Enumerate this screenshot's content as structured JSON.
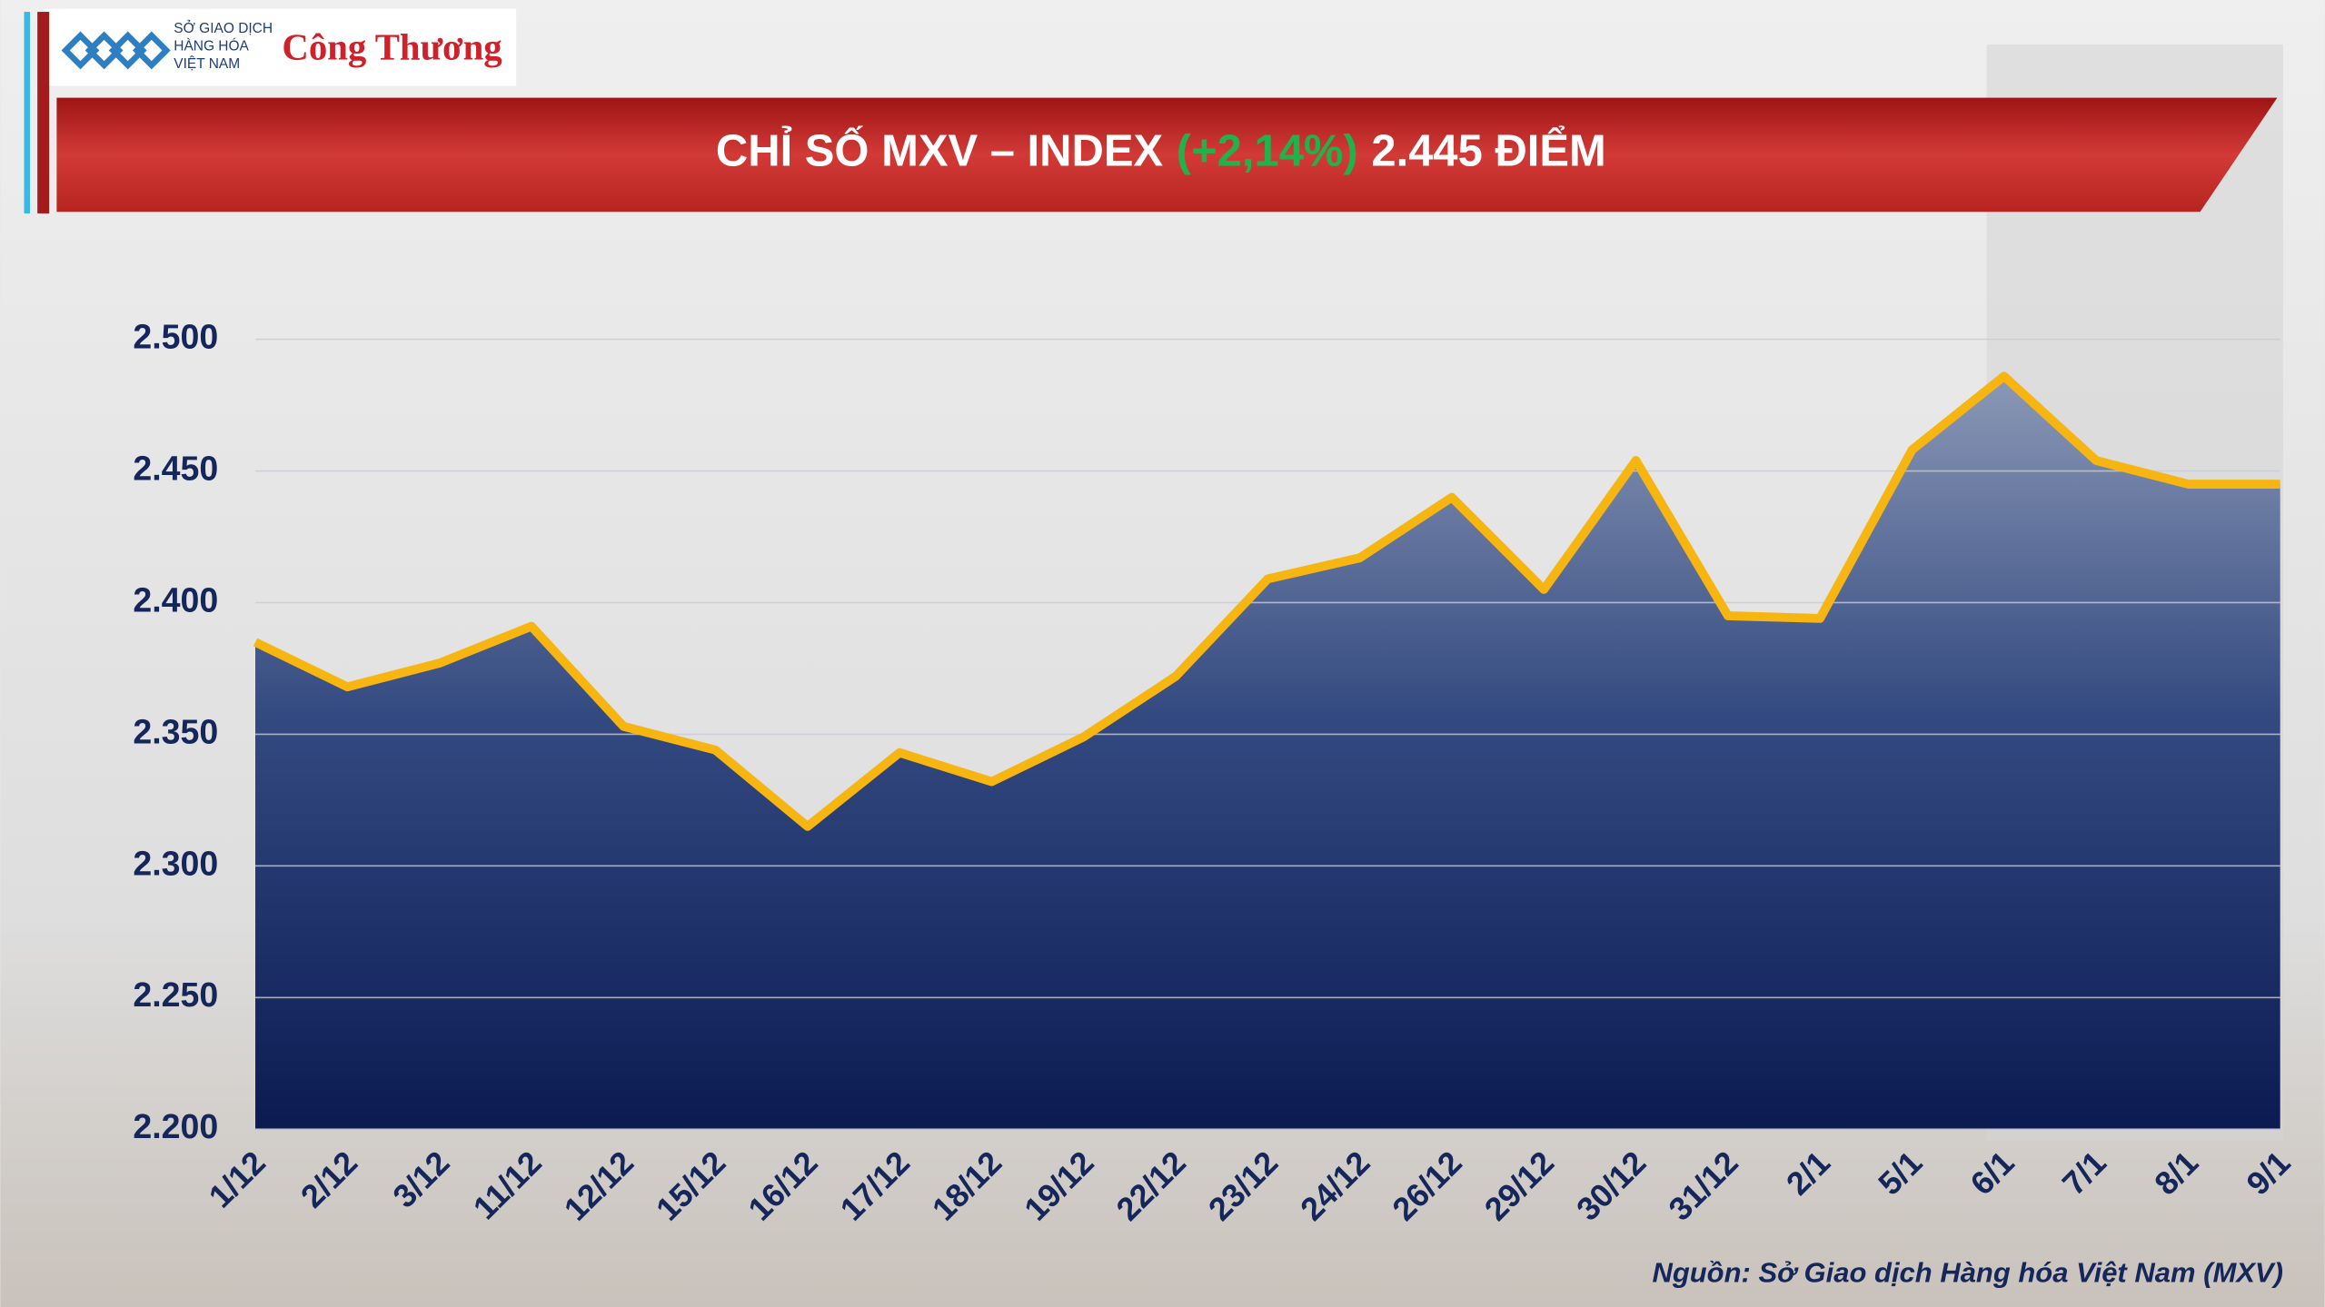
{
  "header": {
    "logo_lines": [
      "SỞ GIAO DỊCH",
      "HÀNG HÓA",
      "VIỆT NAM"
    ],
    "brand": "Công Thương"
  },
  "chart_data": {
    "type": "area",
    "title_parts": [
      "CHỈ SỐ MXV – INDEX",
      "(+2,14%)",
      "2.445 ĐIỂM"
    ],
    "categories": [
      "1/12",
      "2/12",
      "3/12",
      "11/12",
      "12/12",
      "15/12",
      "16/12",
      "17/12",
      "18/12",
      "19/12",
      "22/12",
      "23/12",
      "24/12",
      "26/12",
      "29/12",
      "30/12",
      "31/12",
      "2/1",
      "5/1",
      "6/1",
      "7/1",
      "8/1",
      "9/1"
    ],
    "values": [
      2385,
      2368,
      2377,
      2391,
      2353,
      2344,
      2315,
      2343,
      2332,
      2349,
      2372,
      2409,
      2417,
      2440,
      2405,
      2454,
      2395,
      2394,
      2458,
      2486,
      2454,
      2445,
      2445
    ],
    "color": "#f7b512",
    "ylim": [
      2200,
      2500
    ],
    "yticks": [
      {
        "value": 2200,
        "label": "2.200"
      },
      {
        "value": 2250,
        "label": "2.250"
      },
      {
        "value": 2300,
        "label": "2.300"
      },
      {
        "value": 2350,
        "label": "2.350"
      },
      {
        "value": 2400,
        "label": "2.400"
      },
      {
        "value": 2450,
        "label": "2.450"
      },
      {
        "value": 2500,
        "label": "2.500"
      }
    ],
    "grid": true,
    "source": "Nguồn: Sở Giao dịch Hàng hóa Việt Nam (MXV)"
  }
}
